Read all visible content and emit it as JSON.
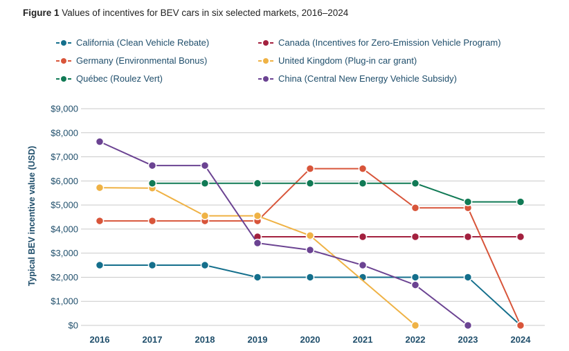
{
  "figure_label": "Figure 1",
  "chart_data": {
    "type": "line",
    "title": "Values of incentives for BEV cars in six selected markets, 2016–2024",
    "xlabel": "",
    "ylabel": "Typical BEV incentive value (USD)",
    "ylim": [
      0,
      9000
    ],
    "yticks": [
      "$0",
      "$1,000",
      "$2,000",
      "$3,000",
      "$4,000",
      "$5,000",
      "$6,000",
      "$7,000",
      "$8,000",
      "$9,000"
    ],
    "grid": "horizontal",
    "legend_position": "top",
    "categories": [
      "2016",
      "2017",
      "2018",
      "2019",
      "2020",
      "2021",
      "2022",
      "2023",
      "2024"
    ],
    "series": [
      {
        "name": "California (Clean Vehicle Rebate)",
        "color": "#146f8c",
        "values": [
          2500,
          2500,
          2500,
          2000,
          2000,
          2000,
          2000,
          2000,
          0
        ]
      },
      {
        "name": "Canada (Incentives for Zero-Emission Vehicle Program)",
        "color": "#a3213f",
        "values": [
          null,
          null,
          null,
          3680,
          3680,
          3680,
          3680,
          3680,
          3680
        ]
      },
      {
        "name": "Germany (Environmental Bonus)",
        "color": "#d8553a",
        "values": [
          4340,
          4340,
          4340,
          4340,
          6510,
          6510,
          4880,
          4880,
          0
        ]
      },
      {
        "name": "United Kingdom (Plug-in car grant)",
        "color": "#efb245",
        "values": [
          5720,
          5700,
          4550,
          4550,
          3730,
          null,
          0,
          null,
          null
        ]
      },
      {
        "name": "Québec (Roulez Vert)",
        "color": "#117a55",
        "values": [
          null,
          5900,
          5900,
          5900,
          5900,
          5900,
          5900,
          5130,
          5130
        ]
      },
      {
        "name": "China (Central New Energy Vehicle Subsidy)",
        "color": "#6b4392",
        "values": [
          7630,
          6640,
          6640,
          3420,
          3130,
          2500,
          1680,
          0,
          null
        ]
      }
    ]
  }
}
